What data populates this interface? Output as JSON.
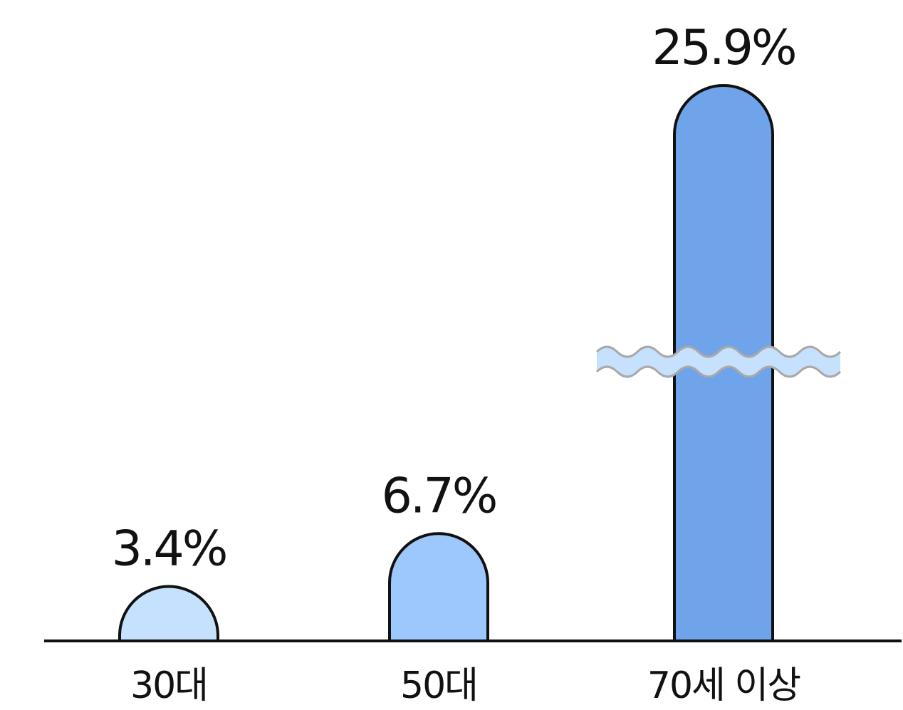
{
  "chart_data": {
    "type": "bar",
    "categories": [
      "30대",
      "50대",
      "70세 이상"
    ],
    "values": [
      3.4,
      6.7,
      25.9
    ],
    "value_labels": [
      "3.4%",
      "6.7%",
      "25.9%"
    ],
    "axis_break_on_category": "70세 이상",
    "colors": [
      "#c5e1fd",
      "#9dc8fd",
      "#6fa3ea"
    ],
    "break_band_color": "#c5e1fd",
    "outline_color": "#111111",
    "title": "",
    "xlabel": "",
    "ylabel": "",
    "grid": false,
    "legend": "none"
  }
}
